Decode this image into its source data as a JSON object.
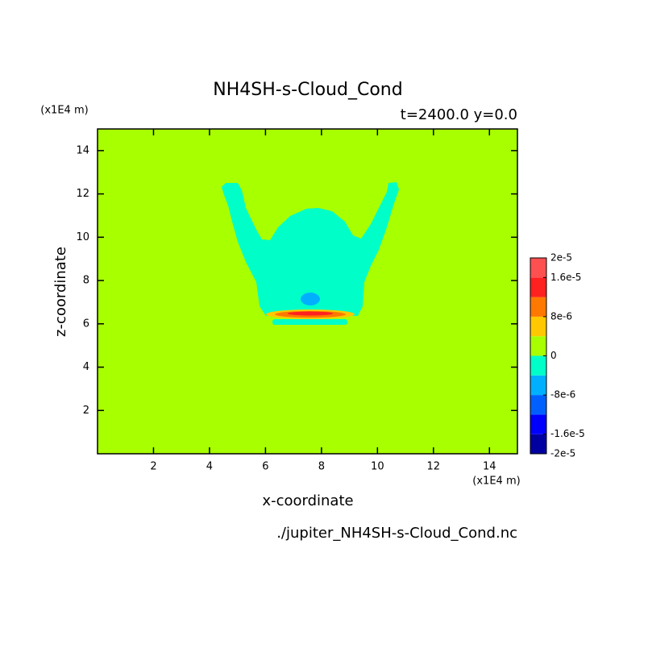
{
  "chart_data": {
    "type": "contour",
    "title": "NH4SH-s-Cloud_Cond",
    "subtitle": "t=2400.0 y=0.0",
    "x_label": "x-coordinate",
    "y_label": "z-coordinate",
    "x_unit": "(x1E4 m)",
    "y_unit": "(x1E4 m)",
    "footer": "./jupiter_NH4SH-s-Cloud_Cond.nc",
    "xlim": [
      0,
      15
    ],
    "ylim": [
      0,
      15
    ],
    "xticks": [
      2,
      4,
      6,
      8,
      10,
      12,
      14
    ],
    "yticks": [
      2,
      4,
      6,
      8,
      10,
      12,
      14
    ],
    "colorbar": {
      "levels": [
        -2e-05,
        -1.6e-05,
        -1.2e-05,
        -8e-06,
        -4e-06,
        0,
        4e-06,
        8e-06,
        1.2e-05,
        1.6e-05,
        2e-05
      ],
      "colors": [
        "#0000a0",
        "#0000ff",
        "#0060ff",
        "#00b0ff",
        "#00ffc8",
        "#a8ff00",
        "#ffc800",
        "#ff7800",
        "#ff2020",
        "#ff5050"
      ],
      "ticks": [
        {
          "value": 2e-05,
          "label": "2e-5"
        },
        {
          "value": 1.6e-05,
          "label": "1.6e-5"
        },
        {
          "value": 8e-06,
          "label": "8e-6"
        },
        0,
        {
          "value": -8e-06,
          "label": "-8e-6"
        },
        {
          "value": -1.6e-05,
          "label": "-1.6e-5"
        },
        {
          "value": -2e-05,
          "label": "-2e-5"
        }
      ]
    }
  }
}
